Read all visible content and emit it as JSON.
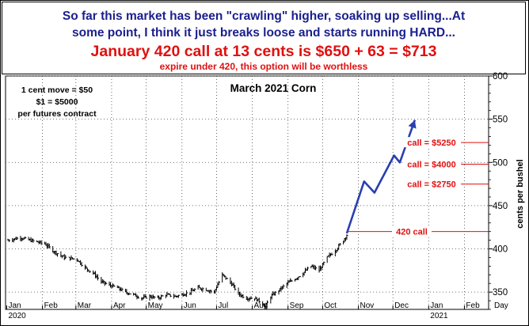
{
  "header": {
    "line1": "So far this market has been \"crawling\" higher, soaking up selling...At",
    "line2": "some point, I think it just breaks loose and starts running HARD...",
    "line3": "January 420 call at 13 cents is $650 + 63 = $713",
    "line4": "expire under 420, this option will be worthless"
  },
  "colors": {
    "title_blue": "#1a1f8c",
    "accent_red": "#e01010",
    "arrow_blue": "#2a3fb0",
    "price_black": "#000000"
  },
  "chart_data": {
    "type": "line",
    "title": "March 2021 Corn",
    "ylabel": "cents per bushel",
    "xlabel": "Day",
    "ylim": [
      330,
      600
    ],
    "yticks": [
      350,
      400,
      450,
      500,
      550,
      600
    ],
    "xlim": [
      "2019-12-31",
      "2021-02-22"
    ],
    "grid": true,
    "legend": "none",
    "note_lines": [
      "1 cent move = $50",
      "$1 = $5000",
      "per futures contract"
    ],
    "x_months": [
      {
        "label": "Jan",
        "date": "2020-01-01"
      },
      {
        "label": "Feb",
        "date": "2020-02-01"
      },
      {
        "label": "Mar",
        "date": "2020-03-01"
      },
      {
        "label": "Apr",
        "date": "2020-04-01"
      },
      {
        "label": "May",
        "date": "2020-05-01"
      },
      {
        "label": "Jun",
        "date": "2020-06-01"
      },
      {
        "label": "Jul",
        "date": "2020-07-01"
      },
      {
        "label": "Aug",
        "date": "2020-08-01"
      },
      {
        "label": "Sep",
        "date": "2020-09-01"
      },
      {
        "label": "Oct",
        "date": "2020-10-01"
      },
      {
        "label": "Nov",
        "date": "2020-11-01"
      },
      {
        "label": "Dec",
        "date": "2020-12-01"
      },
      {
        "label": "Jan",
        "date": "2021-01-01"
      },
      {
        "label": "Feb",
        "date": "2021-02-01"
      }
    ],
    "x_years": [
      {
        "label": "2020",
        "date": "2020-01-01"
      },
      {
        "label": "2021",
        "date": "2021-01-01"
      }
    ],
    "price_series": {
      "dates": [
        "2020-01-02",
        "2020-01-13",
        "2020-01-21",
        "2020-02-03",
        "2020-02-11",
        "2020-02-20",
        "2020-03-02",
        "2020-03-09",
        "2020-03-16",
        "2020-03-23",
        "2020-03-30",
        "2020-04-06",
        "2020-04-13",
        "2020-04-20",
        "2020-04-27",
        "2020-05-04",
        "2020-05-11",
        "2020-05-18",
        "2020-05-26",
        "2020-06-01",
        "2020-06-08",
        "2020-06-15",
        "2020-06-22",
        "2020-06-29",
        "2020-07-01",
        "2020-07-06",
        "2020-07-10",
        "2020-07-15",
        "2020-07-20",
        "2020-07-27",
        "2020-08-03",
        "2020-08-10",
        "2020-08-12",
        "2020-08-17",
        "2020-08-24",
        "2020-08-31",
        "2020-09-08",
        "2020-09-14",
        "2020-09-21",
        "2020-09-28",
        "2020-10-05",
        "2020-10-12",
        "2020-10-19",
        "2020-10-22"
      ],
      "values": [
        410,
        413,
        410,
        406,
        397,
        390,
        388,
        378,
        372,
        362,
        358,
        355,
        350,
        347,
        343,
        345,
        343,
        347,
        345,
        347,
        350,
        355,
        353,
        350,
        356,
        370,
        365,
        358,
        348,
        343,
        343,
        337,
        333,
        345,
        352,
        360,
        366,
        372,
        380,
        375,
        390,
        398,
        410,
        416
      ]
    },
    "projection": {
      "dates": [
        "2020-10-22",
        "2020-11-06",
        "2020-11-15",
        "2020-12-02",
        "2020-12-07",
        "2020-12-20"
      ],
      "values": [
        418,
        478,
        465,
        508,
        500,
        549
      ]
    },
    "annotations": [
      {
        "label": "call = $5250",
        "value": 523
      },
      {
        "label": "call = $4000",
        "value": 498
      },
      {
        "label": "call = $2750",
        "value": 475
      },
      {
        "label": "420 call",
        "value": 420
      }
    ]
  }
}
